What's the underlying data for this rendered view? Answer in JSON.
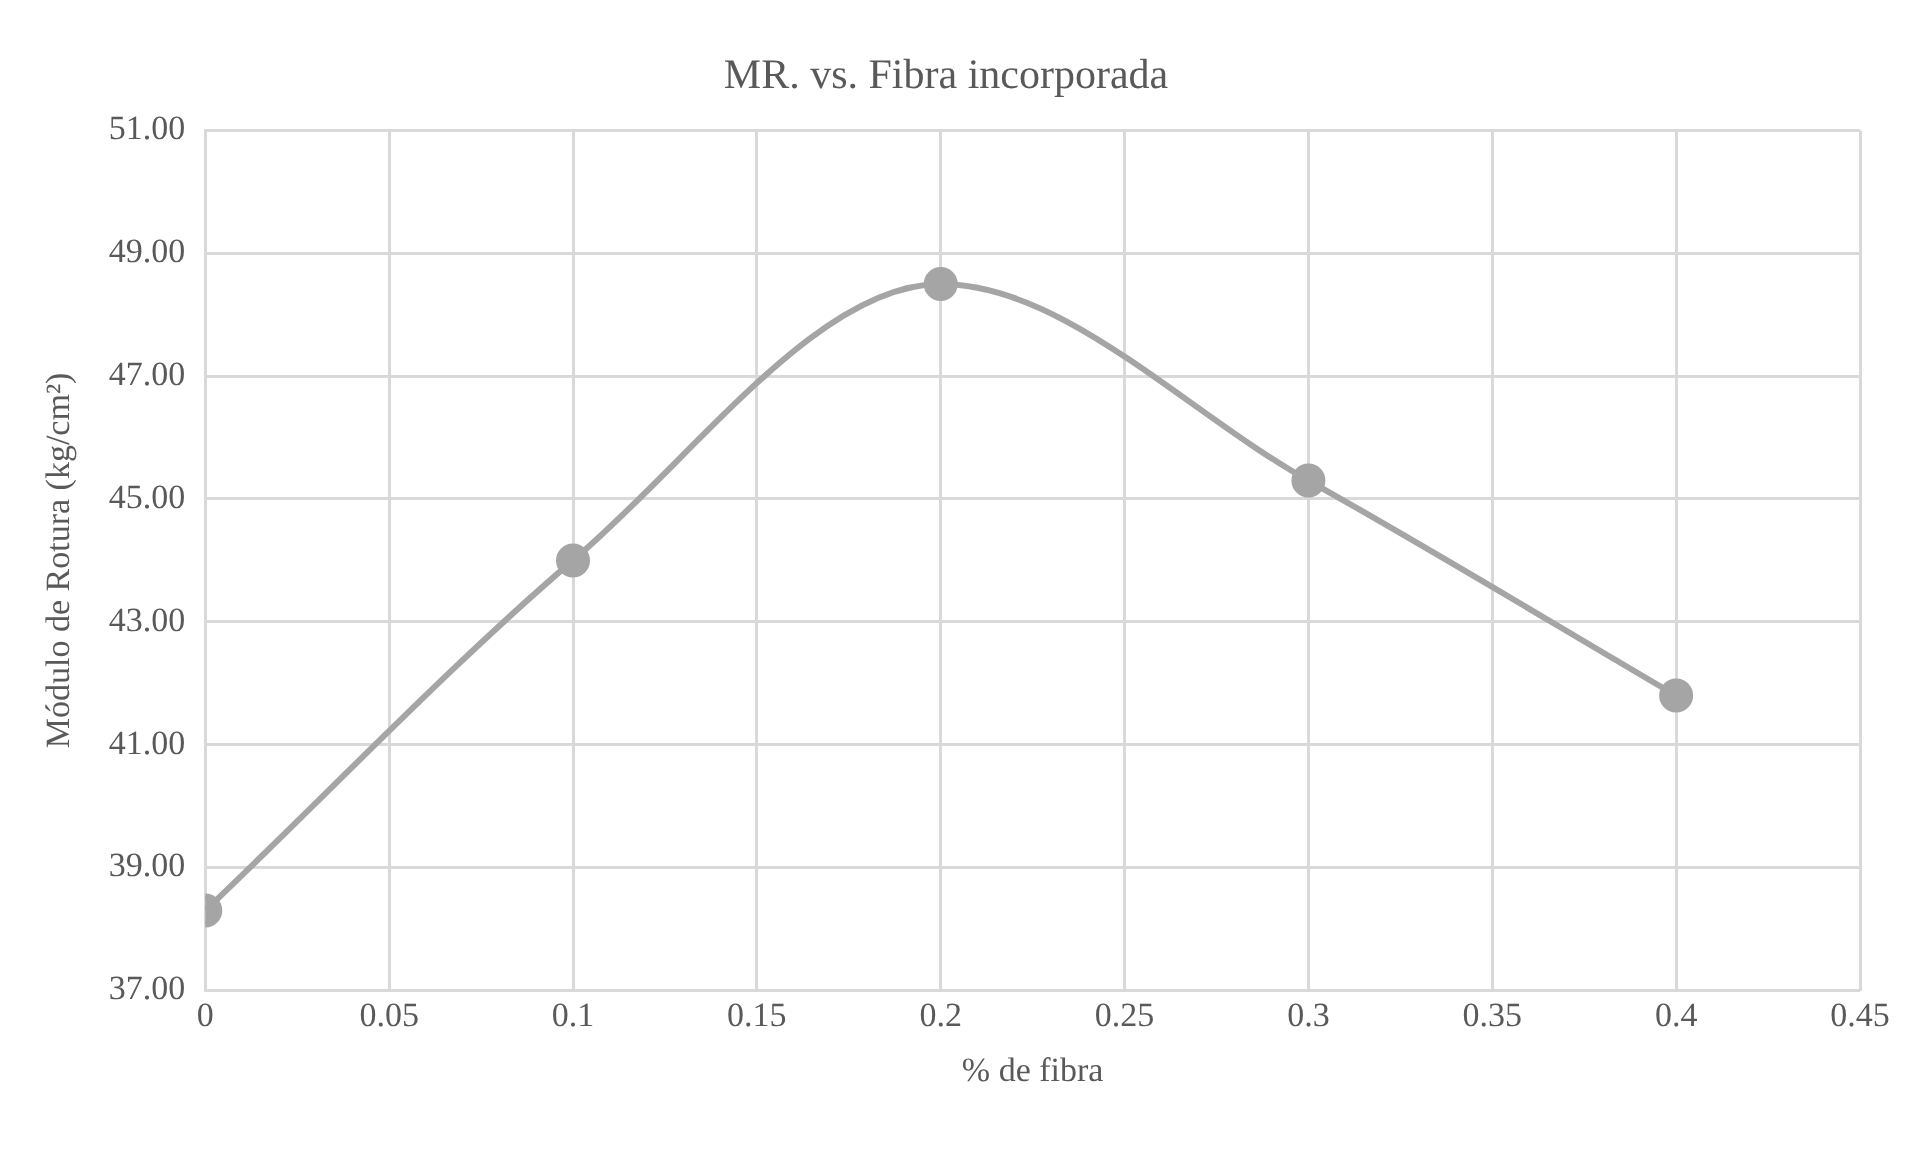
{
  "chart_data": {
    "type": "line",
    "title": "MR. vs. Fibra incorporada",
    "xlabel": "% de fibra",
    "ylabel": "Módulo de Rotura (kg/cm²)",
    "x": [
      0,
      0.1,
      0.2,
      0.3,
      0.4
    ],
    "series": [
      {
        "color": "#a5a5a5",
        "values": [
          38.3,
          44.0,
          48.5,
          45.3,
          41.8
        ]
      }
    ],
    "xlim": [
      0,
      0.45
    ],
    "xticks": [
      0,
      0.05,
      0.1,
      0.15,
      0.2,
      0.25,
      0.3,
      0.35,
      0.4,
      0.45
    ],
    "ylim": [
      37,
      51
    ],
    "yticks": [
      {
        "value": 37,
        "label": "37.00"
      },
      {
        "value": 39,
        "label": "39.00"
      },
      {
        "value": 41,
        "label": "41.00"
      },
      {
        "value": 43,
        "label": "43.00"
      },
      {
        "value": 45,
        "label": "45.00"
      },
      {
        "value": 47,
        "label": "47.00"
      },
      {
        "value": 49,
        "label": "49.00"
      },
      {
        "value": 51,
        "label": "51.00"
      }
    ],
    "grid": true,
    "legend": false,
    "marker": "circle",
    "line_style": "solid"
  }
}
